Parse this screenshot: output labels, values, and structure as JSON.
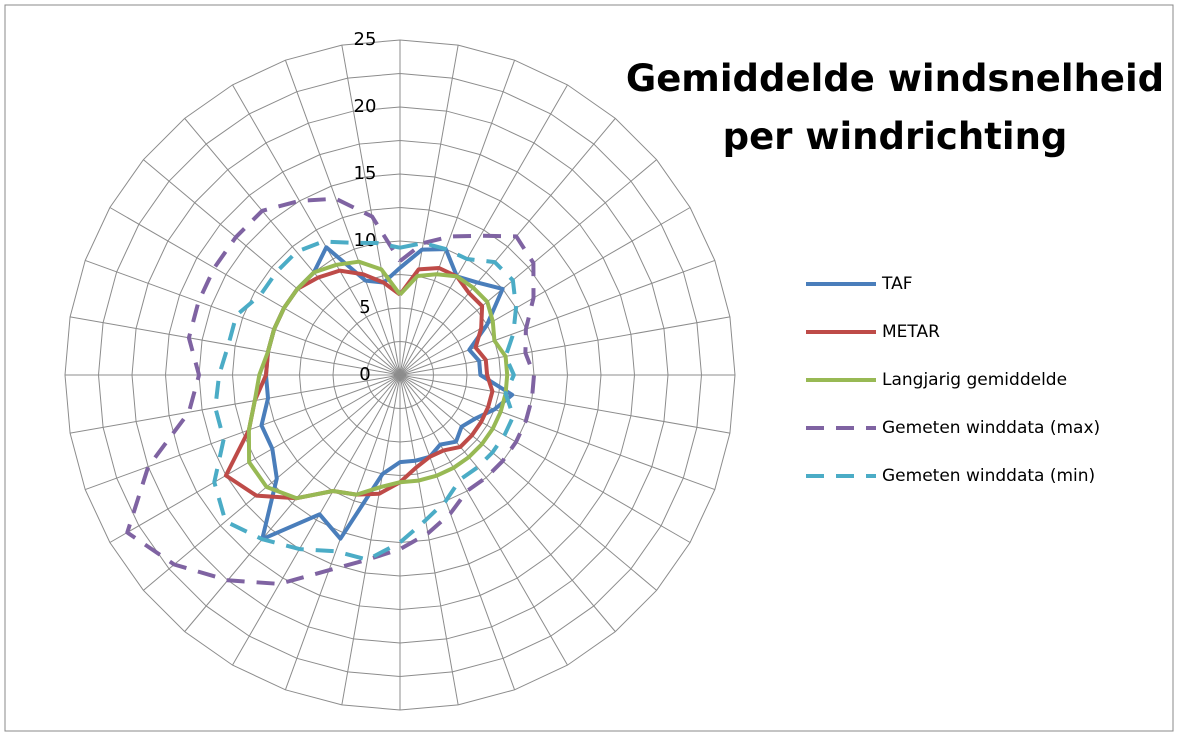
{
  "chart_data": {
    "type": "radar",
    "title": "Gemiddelde windsnelheid per windrichting",
    "categories": [
      null,
      null,
      null,
      null,
      null,
      null,
      null,
      null,
      null,
      null,
      null,
      null,
      null,
      null,
      null,
      null,
      null,
      null,
      null,
      null,
      null,
      null,
      null,
      null,
      null,
      null,
      null,
      null,
      null,
      null,
      null,
      null,
      null,
      null,
      null,
      null
    ],
    "ylim": [
      0,
      25
    ],
    "yticks": [
      0,
      5,
      10,
      15,
      20,
      25
    ],
    "minor_yticks": [
      2.5,
      7.5,
      12.5,
      17.5,
      22.5
    ],
    "grid": true,
    "legend": "right",
    "series": [
      {
        "name": "TAF",
        "color": "#4a7ebb",
        "dash": false,
        "values": [
          8,
          9.5,
          10,
          8.5,
          9,
          10,
          7.5,
          5.5,
          6,
          6,
          8.5,
          7.5,
          6.5,
          6,
          6.5,
          6,
          6.5,
          6.5,
          6.5,
          7.5,
          13,
          12,
          16,
          12,
          11,
          11,
          10,
          10,
          10,
          10,
          10,
          10,
          10,
          11,
          7.5,
          7
        ]
      },
      {
        "name": "METAR",
        "color": "#be4b48",
        "dash": false,
        "values": [
          6,
          8,
          8.5,
          8.5,
          8,
          8,
          7,
          6,
          6.5,
          6.5,
          7,
          7,
          7,
          7,
          7,
          6.5,
          6.5,
          7,
          8,
          9,
          9.5,
          10,
          12,
          14,
          15,
          12,
          11,
          10,
          10,
          10,
          10,
          10,
          9.5,
          9,
          8,
          7
        ]
      },
      {
        "name": "Langjarig gemiddelde",
        "color": "#98b954",
        "dash": false,
        "values": [
          6,
          7.5,
          8,
          8.5,
          8.5,
          8.5,
          8,
          7.5,
          8,
          8,
          8,
          8,
          8,
          8,
          8,
          8,
          8,
          8,
          8,
          8.5,
          9.5,
          10,
          12,
          13,
          13,
          12,
          11,
          10.5,
          10,
          10,
          10,
          10,
          10,
          9.5,
          9,
          8
        ]
      },
      {
        "name": "Gemeten winddata (max)",
        "color": "#7f63a2",
        "dash": true,
        "values": [
          8.5,
          10,
          11,
          12,
          13.5,
          13,
          11.5,
          10,
          9.5,
          10,
          10,
          10,
          10,
          10,
          10,
          10,
          11,
          12,
          13,
          14,
          15.5,
          18,
          20,
          22,
          23.5,
          20,
          16,
          15,
          16,
          16,
          16,
          16,
          16,
          15,
          14,
          12
        ]
      },
      {
        "name": "Gemeten winddata (min)",
        "color": "#4bacc6",
        "dash": true,
        "values": [
          9.5,
          10,
          10,
          10,
          11,
          11,
          10,
          9,
          8,
          8.5,
          8,
          9,
          9,
          9,
          9,
          9,
          10,
          11,
          12.5,
          14,
          14,
          15,
          16,
          17,
          16,
          14,
          14,
          13.5,
          13,
          13,
          12,
          12,
          12,
          11.5,
          10.5,
          10
        ]
      }
    ]
  }
}
